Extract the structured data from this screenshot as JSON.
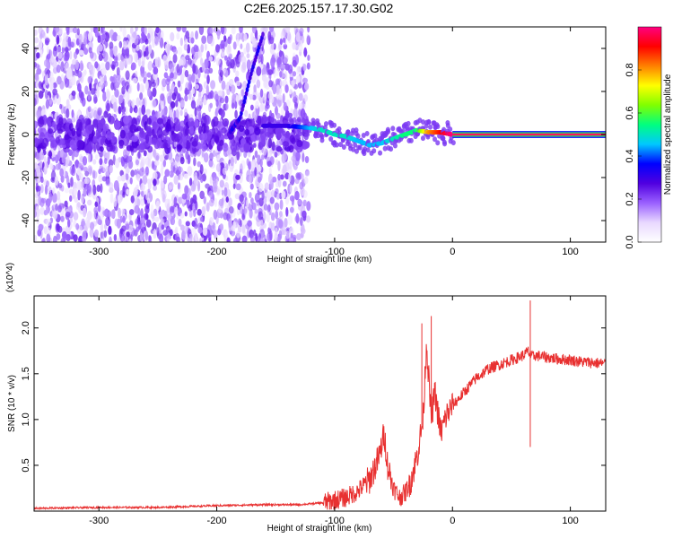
{
  "title": "C2E6.2025.157.17.30.G02",
  "chart_data": [
    {
      "type": "heatmap",
      "xlabel": "Height of straight line (km)",
      "ylabel": "Frequency (Hz)",
      "xlim": [
        -355,
        130
      ],
      "ylim": [
        -50,
        50
      ],
      "xticks": [
        -300,
        -200,
        -100,
        0,
        100
      ],
      "yticks": [
        -40,
        -20,
        0,
        20,
        40
      ],
      "colorbar": {
        "label": "Normalized spectral amplitude",
        "range": [
          0,
          1
        ],
        "ticks": [
          0.0,
          0.2,
          0.4,
          0.6,
          0.8
        ],
        "tick_labels": [
          "0.0",
          "0.2",
          "0.4",
          "0.6",
          "0.8"
        ],
        "colormap": [
          "#ffffff",
          "#e8d8ff",
          "#9a60ff",
          "#5000e0",
          "#0000ff",
          "#00c8ff",
          "#00ff80",
          "#80ff00",
          "#ffff00",
          "#ff8000",
          "#ff0000",
          "#ff0080"
        ]
      },
      "noise_region_x": [
        -355,
        -122
      ],
      "noise_amplitude": 0.2,
      "signal_track": [
        {
          "x": -160,
          "y": 4,
          "amp": 0.3
        },
        {
          "x": -140,
          "y": 4,
          "amp": 0.3
        },
        {
          "x": -120,
          "y": 3,
          "amp": 0.45
        },
        {
          "x": -110,
          "y": 2,
          "amp": 0.5
        },
        {
          "x": -100,
          "y": 0,
          "amp": 0.5
        },
        {
          "x": -90,
          "y": -1,
          "amp": 0.5
        },
        {
          "x": -80,
          "y": -3,
          "amp": 0.45
        },
        {
          "x": -70,
          "y": -5,
          "amp": 0.45
        },
        {
          "x": -60,
          "y": -4,
          "amp": 0.45
        },
        {
          "x": -50,
          "y": -2,
          "amp": 0.5
        },
        {
          "x": -40,
          "y": 0,
          "amp": 0.55
        },
        {
          "x": -30,
          "y": 2,
          "amp": 0.55
        },
        {
          "x": -20,
          "y": 1,
          "amp": 0.8
        },
        {
          "x": -10,
          "y": 1,
          "amp": 0.9
        },
        {
          "x": 0,
          "y": 0,
          "amp": 1.0
        }
      ],
      "carrier_line": {
        "x_start": 0,
        "x_end": 130,
        "y": 0
      },
      "chirp_line": [
        {
          "x": -190,
          "y": 0
        },
        {
          "x": -180,
          "y": 8
        },
        {
          "x": -170,
          "y": 30
        },
        {
          "x": -160,
          "y": 48
        }
      ]
    },
    {
      "type": "line",
      "xlabel": "Height of straight line (km)",
      "ylabel": "SNR (10 * v/v)",
      "y_multiplier": "(x10^4)",
      "xlim": [
        -355,
        130
      ],
      "ylim": [
        0,
        2.35
      ],
      "xticks": [
        -300,
        -200,
        -100,
        0,
        100
      ],
      "yticks": [
        0.5,
        1.0,
        1.5,
        2.0
      ],
      "ytick_labels": [
        "0.5",
        "1.0",
        "1.5",
        "2.0"
      ],
      "color": "#e83030",
      "series": [
        {
          "x": [
            -355,
            -300,
            -250,
            -200,
            -160,
            -130,
            -110,
            -100,
            -90,
            -80,
            -70,
            -62,
            -58,
            -55,
            -50,
            -45,
            -40,
            -35,
            -30,
            -25,
            -22,
            -18,
            -15,
            -10,
            -5,
            0,
            10,
            20,
            30,
            40,
            50,
            60,
            62,
            64,
            66,
            68,
            70,
            80,
            90,
            100,
            110,
            120,
            130
          ],
          "y": [
            0.03,
            0.04,
            0.04,
            0.06,
            0.07,
            0.07,
            0.09,
            0.12,
            0.15,
            0.22,
            0.35,
            0.6,
            0.85,
            0.5,
            0.25,
            0.15,
            0.2,
            0.35,
            0.6,
            1.0,
            1.85,
            1.0,
            1.3,
            0.85,
            1.05,
            1.15,
            1.3,
            1.45,
            1.55,
            1.6,
            1.65,
            1.7,
            1.72,
            1.75,
            1.7,
            1.68,
            1.7,
            1.68,
            1.66,
            1.65,
            1.63,
            1.62,
            1.61
          ]
        }
      ],
      "spikes": [
        {
          "x": -18,
          "y": 2.13
        },
        {
          "x": -26,
          "y": 2.05
        },
        {
          "x": -59,
          "y": 0.9
        },
        {
          "x": 66,
          "y": 2.3
        },
        {
          "x": 66,
          "y": 0.7
        }
      ],
      "noise_amplitude": 0.12
    }
  ]
}
